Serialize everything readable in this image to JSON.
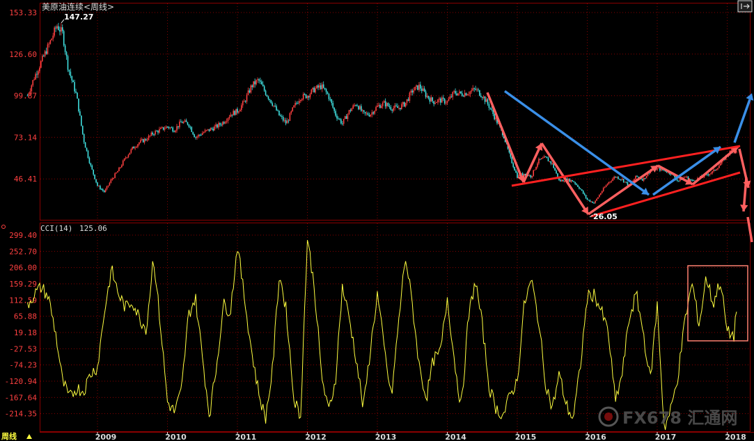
{
  "header": {
    "title": "美原油连续<周线>",
    "period_label": "周线"
  },
  "colors": {
    "up": "#ff4040",
    "down": "#40e0e0",
    "cci_line": "#ffff40",
    "annotation_red": "#ff6060",
    "annotation_blue": "#3a8fe8",
    "grid": "#8a0000",
    "axis_text": "#ff4040"
  },
  "chart_data": [
    {
      "type": "candlestick",
      "title": "美原油连续<周线>",
      "x_tick_labels": [
        "2009",
        "2010",
        "2011",
        "2012",
        "2013",
        "2014",
        "2015",
        "2016",
        "2017",
        "2018"
      ],
      "y_tick_labels": [
        "153.33",
        "126.60",
        "99.87",
        "73.14",
        "46.41"
      ],
      "ylim": [
        19.68,
        153.33
      ],
      "series": [
        {
          "values_close": [
            [
              2008.0,
              100
            ],
            [
              2008.1,
              112
            ],
            [
              2008.2,
              122
            ],
            [
              2008.33,
              135
            ],
            [
              2008.42,
              145
            ],
            [
              2008.5,
              140
            ],
            [
              2008.58,
              118
            ],
            [
              2008.7,
              100
            ],
            [
              2008.8,
              72
            ],
            [
              2008.9,
              55
            ],
            [
              2009.0,
              42
            ],
            [
              2009.1,
              38
            ],
            [
              2009.2,
              46
            ],
            [
              2009.3,
              52
            ],
            [
              2009.4,
              60
            ],
            [
              2009.5,
              66
            ],
            [
              2009.6,
              70
            ],
            [
              2009.7,
              72
            ],
            [
              2009.8,
              76
            ],
            [
              2009.9,
              78
            ],
            [
              2010.0,
              80
            ],
            [
              2010.1,
              78
            ],
            [
              2010.2,
              83
            ],
            [
              2010.3,
              82
            ],
            [
              2010.4,
              73
            ],
            [
              2010.5,
              76
            ],
            [
              2010.6,
              78
            ],
            [
              2010.7,
              80
            ],
            [
              2010.8,
              83
            ],
            [
              2010.9,
              88
            ],
            [
              2011.0,
              90
            ],
            [
              2011.1,
              96
            ],
            [
              2011.2,
              106
            ],
            [
              2011.3,
              110
            ],
            [
              2011.4,
              102
            ],
            [
              2011.5,
              95
            ],
            [
              2011.6,
              87
            ],
            [
              2011.7,
              82
            ],
            [
              2011.8,
              92
            ],
            [
              2011.9,
              99
            ],
            [
              2012.0,
              100
            ],
            [
              2012.1,
              104
            ],
            [
              2012.2,
              106
            ],
            [
              2012.3,
              100
            ],
            [
              2012.4,
              88
            ],
            [
              2012.5,
              82
            ],
            [
              2012.6,
              90
            ],
            [
              2012.7,
              95
            ],
            [
              2012.8,
              88
            ],
            [
              2012.9,
              88
            ],
            [
              2013.0,
              93
            ],
            [
              2013.1,
              95
            ],
            [
              2013.2,
              92
            ],
            [
              2013.3,
              92
            ],
            [
              2013.4,
              95
            ],
            [
              2013.5,
              103
            ],
            [
              2013.6,
              106
            ],
            [
              2013.7,
              100
            ],
            [
              2013.8,
              96
            ],
            [
              2013.9,
              97
            ],
            [
              2014.0,
              96
            ],
            [
              2014.1,
              102
            ],
            [
              2014.2,
              101
            ],
            [
              2014.3,
              102
            ],
            [
              2014.4,
              104
            ],
            [
              2014.5,
              100
            ],
            [
              2014.6,
              93
            ],
            [
              2014.7,
              84
            ],
            [
              2014.8,
              75
            ],
            [
              2014.9,
              60
            ],
            [
              2015.0,
              48
            ],
            [
              2015.1,
              50
            ],
            [
              2015.2,
              48
            ],
            [
              2015.3,
              58
            ],
            [
              2015.4,
              60
            ],
            [
              2015.5,
              56
            ],
            [
              2015.6,
              45
            ],
            [
              2015.7,
              46
            ],
            [
              2015.8,
              45
            ],
            [
              2015.9,
              40
            ],
            [
              2016.0,
              33
            ],
            [
              2016.1,
              31
            ],
            [
              2016.2,
              38
            ],
            [
              2016.3,
              44
            ],
            [
              2016.4,
              48
            ],
            [
              2016.5,
              46
            ],
            [
              2016.6,
              42
            ],
            [
              2016.7,
              48
            ],
            [
              2016.8,
              46
            ],
            [
              2016.9,
              52
            ],
            [
              2017.0,
              53
            ],
            [
              2017.1,
              52
            ],
            [
              2017.2,
              50
            ],
            [
              2017.3,
              45
            ],
            [
              2017.4,
              48
            ],
            [
              2017.5,
              45
            ],
            [
              2017.6,
              47
            ],
            [
              2017.7,
              49
            ],
            [
              2017.8,
              51
            ],
            [
              2017.9,
              56
            ],
            [
              2018.0,
              62
            ],
            [
              2018.1,
              66
            ],
            [
              2018.15,
              62
            ]
          ]
        }
      ],
      "annotations": [
        {
          "text": "147.27"
        },
        {
          "text": "26.05"
        }
      ]
    },
    {
      "type": "line",
      "title": "CCI(14)",
      "current_value": "125.06",
      "y_tick_labels": [
        "299.40",
        "252.70",
        "206.00",
        "159.29",
        "112.59",
        "65.88",
        "19.18",
        "-27.53",
        "-74.23",
        "-120.94",
        "-167.64",
        "-214.35"
      ],
      "ylim": [
        -261.05,
        299.4
      ],
      "series": [
        {
          "name": "CCI(14)",
          "values": [
            [
              2008.0,
              100
            ],
            [
              2008.1,
              130
            ],
            [
              2008.2,
              150
            ],
            [
              2008.3,
              120
            ],
            [
              2008.4,
              20
            ],
            [
              2008.5,
              -120
            ],
            [
              2008.6,
              -170
            ],
            [
              2008.7,
              -140
            ],
            [
              2008.8,
              -150
            ],
            [
              2008.9,
              -100
            ],
            [
              2009.0,
              -80
            ],
            [
              2009.1,
              80
            ],
            [
              2009.2,
              200
            ],
            [
              2009.3,
              130
            ],
            [
              2009.4,
              90
            ],
            [
              2009.5,
              110
            ],
            [
              2009.6,
              60
            ],
            [
              2009.7,
              30
            ],
            [
              2009.8,
              240
            ],
            [
              2009.9,
              40
            ],
            [
              2010.0,
              -180
            ],
            [
              2010.1,
              -210
            ],
            [
              2010.2,
              -150
            ],
            [
              2010.3,
              70
            ],
            [
              2010.4,
              120
            ],
            [
              2010.5,
              -50
            ],
            [
              2010.6,
              -220
            ],
            [
              2010.7,
              -80
            ],
            [
              2010.8,
              100
            ],
            [
              2010.9,
              80
            ],
            [
              2011.0,
              270
            ],
            [
              2011.1,
              120
            ],
            [
              2011.2,
              -30
            ],
            [
              2011.3,
              -150
            ],
            [
              2011.4,
              -230
            ],
            [
              2011.5,
              -90
            ],
            [
              2011.6,
              190
            ],
            [
              2011.7,
              80
            ],
            [
              2011.8,
              -160
            ],
            [
              2011.9,
              -230
            ],
            [
              2012.0,
              290
            ],
            [
              2012.1,
              150
            ],
            [
              2012.2,
              -100
            ],
            [
              2012.3,
              -210
            ],
            [
              2012.4,
              -120
            ],
            [
              2012.5,
              150
            ],
            [
              2012.6,
              60
            ],
            [
              2012.7,
              -60
            ],
            [
              2012.8,
              -200
            ],
            [
              2012.9,
              -30
            ],
            [
              2013.0,
              130
            ],
            [
              2013.1,
              -30
            ],
            [
              2013.2,
              -170
            ],
            [
              2013.3,
              40
            ],
            [
              2013.4,
              240
            ],
            [
              2013.5,
              100
            ],
            [
              2013.6,
              -80
            ],
            [
              2013.7,
              -170
            ],
            [
              2013.8,
              -60
            ],
            [
              2013.9,
              -40
            ],
            [
              2014.0,
              120
            ],
            [
              2014.1,
              -60
            ],
            [
              2014.2,
              -200
            ],
            [
              2014.3,
              60
            ],
            [
              2014.4,
              170
            ],
            [
              2014.5,
              40
            ],
            [
              2014.6,
              -140
            ],
            [
              2014.7,
              -200
            ],
            [
              2014.8,
              -220
            ],
            [
              2014.9,
              -160
            ],
            [
              2015.0,
              -120
            ],
            [
              2015.1,
              100
            ],
            [
              2015.2,
              170
            ],
            [
              2015.3,
              60
            ],
            [
              2015.4,
              -120
            ],
            [
              2015.5,
              -200
            ],
            [
              2015.6,
              -100
            ],
            [
              2015.7,
              -190
            ],
            [
              2015.8,
              -230
            ],
            [
              2015.9,
              -80
            ],
            [
              2016.0,
              120
            ],
            [
              2016.1,
              130
            ],
            [
              2016.2,
              80
            ],
            [
              2016.3,
              20
            ],
            [
              2016.4,
              -180
            ],
            [
              2016.5,
              -100
            ],
            [
              2016.6,
              60
            ],
            [
              2016.7,
              130
            ],
            [
              2016.8,
              20
            ],
            [
              2016.9,
              -120
            ],
            [
              2017.0,
              100
            ],
            [
              2017.1,
              -260
            ],
            [
              2017.2,
              -200
            ],
            [
              2017.3,
              -100
            ],
            [
              2017.4,
              60
            ],
            [
              2017.5,
              160
            ],
            [
              2017.6,
              40
            ],
            [
              2017.7,
              180
            ],
            [
              2017.8,
              100
            ],
            [
              2017.9,
              170
            ],
            [
              2018.0,
              20
            ],
            [
              2018.1,
              10
            ],
            [
              2018.15,
              125
            ]
          ]
        }
      ]
    }
  ],
  "x_axis": {
    "labels": [
      "2009",
      "2010",
      "2011",
      "2012",
      "2013",
      "2014",
      "2015",
      "2016",
      "2017",
      "2018"
    ]
  },
  "watermark": {
    "text": "FX678 汇通网"
  }
}
